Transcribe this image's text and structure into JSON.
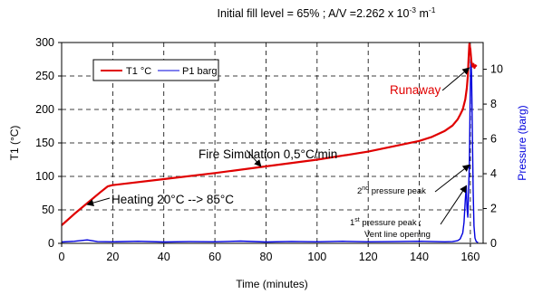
{
  "chart_data": {
    "type": "line",
    "title": "Initial fill level = 65% ;  A/V =2.262 x 10",
    "title_sup": "-3",
    "title_unit": " m",
    "title_unit_sup": "-1",
    "xlabel": "Time (minutes)",
    "ylabel": "T1 (°C)",
    "y2label": "Pressure (barg)",
    "xlim": [
      0,
      165
    ],
    "ylim": [
      0,
      300
    ],
    "y2lim": [
      0,
      11.538
    ],
    "x_ticks": [
      "0",
      "20",
      "40",
      "60",
      "80",
      "100",
      "120",
      "140",
      "160"
    ],
    "y_ticks": [
      "0",
      "50",
      "100",
      "150",
      "200",
      "250",
      "300"
    ],
    "y2_ticks": [
      "0",
      "2",
      "4",
      "6",
      "8",
      "10"
    ],
    "grid": true,
    "legend_placement": "top-left",
    "series": [
      {
        "name": "T1 °C",
        "axis": "left",
        "color": "#e00000",
        "points": [
          [
            0,
            27
          ],
          [
            5,
            44
          ],
          [
            10,
            60
          ],
          [
            15,
            76
          ],
          [
            18,
            85
          ],
          [
            20,
            87
          ],
          [
            40,
            96
          ],
          [
            60,
            105
          ],
          [
            80,
            115
          ],
          [
            100,
            125
          ],
          [
            120,
            137
          ],
          [
            130,
            145
          ],
          [
            140,
            153
          ],
          [
            145,
            159
          ],
          [
            150,
            168
          ],
          [
            153,
            176
          ],
          [
            155,
            185
          ],
          [
            156,
            192
          ],
          [
            157,
            200
          ],
          [
            158,
            215
          ],
          [
            158.6,
            232
          ],
          [
            159,
            250
          ],
          [
            159.3,
            275
          ],
          [
            159.6,
            298
          ],
          [
            160,
            290
          ],
          [
            160.4,
            272
          ],
          [
            160.8,
            264
          ],
          [
            161.2,
            268
          ],
          [
            161.6,
            262
          ],
          [
            162,
            266
          ],
          [
            162.4,
            264
          ]
        ]
      },
      {
        "name": "P1 barg",
        "axis": "right",
        "color": "#0000dd",
        "points": [
          [
            0,
            0.08
          ],
          [
            5,
            0.12
          ],
          [
            10,
            0.2
          ],
          [
            14,
            0.1
          ],
          [
            20,
            0.09
          ],
          [
            30,
            0.12
          ],
          [
            40,
            0.08
          ],
          [
            50,
            0.1
          ],
          [
            60,
            0.09
          ],
          [
            70,
            0.13
          ],
          [
            80,
            0.08
          ],
          [
            90,
            0.11
          ],
          [
            100,
            0.09
          ],
          [
            110,
            0.12
          ],
          [
            120,
            0.09
          ],
          [
            130,
            0.1
          ],
          [
            140,
            0.12
          ],
          [
            150,
            0.09
          ],
          [
            153,
            0.1
          ],
          [
            155,
            0.15
          ],
          [
            156,
            0.25
          ],
          [
            157,
            0.6
          ],
          [
            157.5,
            1.2
          ],
          [
            158,
            2.5
          ],
          [
            158.4,
            3.3
          ],
          [
            158.7,
            2.0
          ],
          [
            159,
            1.5
          ],
          [
            159.3,
            3.0
          ],
          [
            159.6,
            4.5
          ],
          [
            159.9,
            8.0
          ],
          [
            160.2,
            10.7
          ],
          [
            160.5,
            9.5
          ],
          [
            160.8,
            6.0
          ],
          [
            161.1,
            3.0
          ],
          [
            161.4,
            1.0
          ],
          [
            161.8,
            0.3
          ],
          [
            162.3,
            0.1
          ],
          [
            163,
            0.05
          ]
        ]
      }
    ],
    "annotations": [
      {
        "id": "runaway",
        "text": "Runaway",
        "color": "#e00000",
        "point_axis": "left",
        "point": [
          159.5,
          262
        ]
      },
      {
        "id": "fire",
        "text": "Fire Simulation 0,5°C/min",
        "color": "#000000",
        "point_axis": "left",
        "point": [
          78,
          115
        ]
      },
      {
        "id": "heating",
        "text": "Heating 20°C --> 85°C",
        "color": "#000000",
        "point_axis": "left",
        "point": [
          10,
          58
        ]
      },
      {
        "id": "peak2",
        "text_parts": [
          "2",
          "nd",
          " pressure peak"
        ],
        "color": "#000000",
        "point_axis": "right",
        "point": [
          159.6,
          4.5
        ]
      },
      {
        "id": "peak1",
        "text_parts": [
          "1",
          "st",
          " pressure peak ;"
        ],
        "text_line2": "Vent line opening",
        "color": "#000000",
        "point_axis": "right",
        "point": [
          158.4,
          3.3
        ]
      }
    ]
  }
}
